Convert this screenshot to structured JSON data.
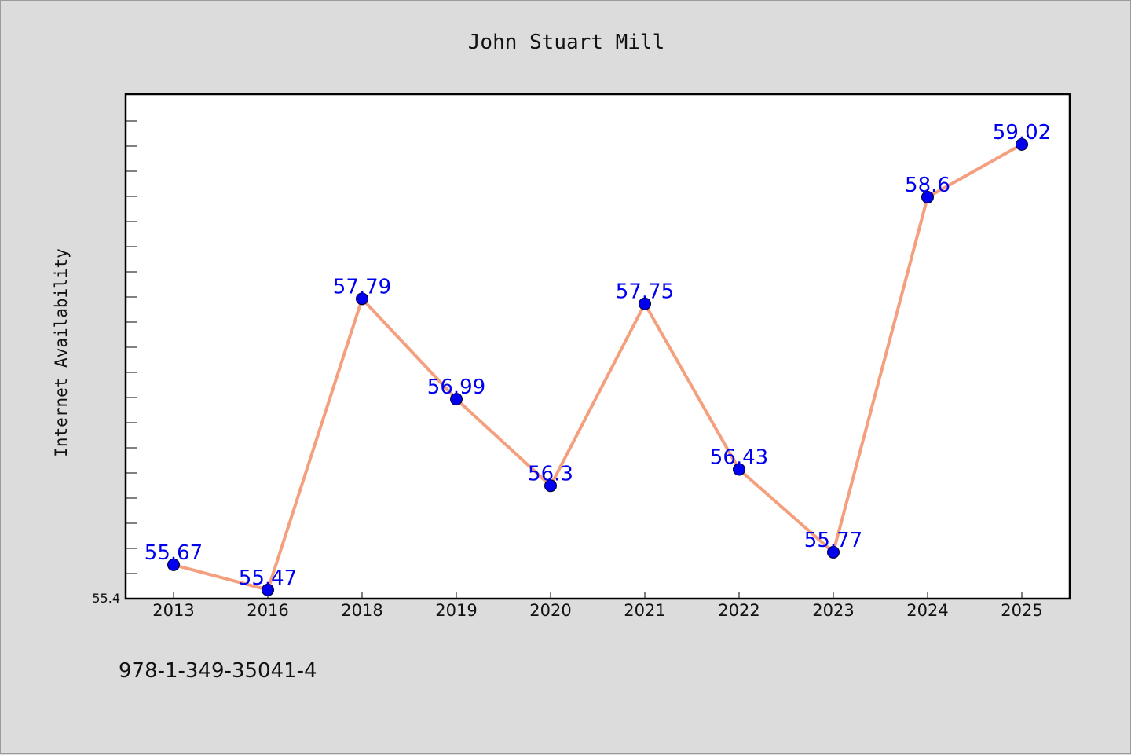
{
  "chart_data": {
    "type": "line",
    "title": "John Stuart Mill",
    "xlabel": "",
    "ylabel": "Internet Availability",
    "categories": [
      "2013",
      "2016",
      "2018",
      "2019",
      "2020",
      "2021",
      "2022",
      "2023",
      "2024",
      "2025"
    ],
    "series": [
      {
        "values": [
          55.67,
          55.47,
          57.79,
          56.99,
          56.3,
          57.75,
          56.43,
          55.77,
          58.6,
          59.02
        ]
      }
    ],
    "data_labels": [
      "55.67",
      "55.47",
      "57.79",
      "56.99",
      "56.3",
      "57.75",
      "56.43",
      "55.77",
      "58.6",
      "59.02"
    ],
    "ylim": [
      55.4,
      59.42
    ],
    "y_tick_label": "55.4",
    "grid": false,
    "line_color": "#f4a07f",
    "marker_color": "#0000ee",
    "label_color": "#0000ee"
  },
  "footer": {
    "isbn": "978-1-349-35041-4"
  }
}
